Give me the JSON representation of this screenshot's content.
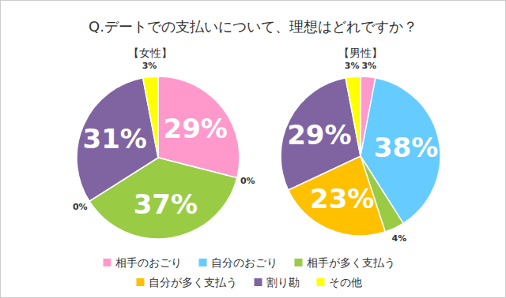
{
  "chart_data": {
    "type": "pie",
    "title": "Q.デートでの支払いについて、理想はどれですか？",
    "categories": [
      "相手のおごり",
      "自分のおごり",
      "相手が多く支払う",
      "自分が多く支払う",
      "割り勘",
      "その他"
    ],
    "colors": [
      "#ff99cc",
      "#66ccff",
      "#99cc44",
      "#ffc000",
      "#8064a2",
      "#ffff00"
    ],
    "series": [
      {
        "name": "【女性】",
        "values": [
          29,
          0,
          37,
          0,
          31,
          3
        ],
        "value_labels": [
          "29%",
          "0%",
          "37%",
          "0%",
          "31%",
          "3%"
        ]
      },
      {
        "name": "【男性】",
        "values": [
          3,
          38,
          4,
          23,
          29,
          3
        ],
        "value_labels": [
          "3%",
          "38%",
          "4%",
          "23%",
          "29%",
          "3%"
        ]
      }
    ],
    "data_labels": true,
    "legend": "bottom"
  }
}
